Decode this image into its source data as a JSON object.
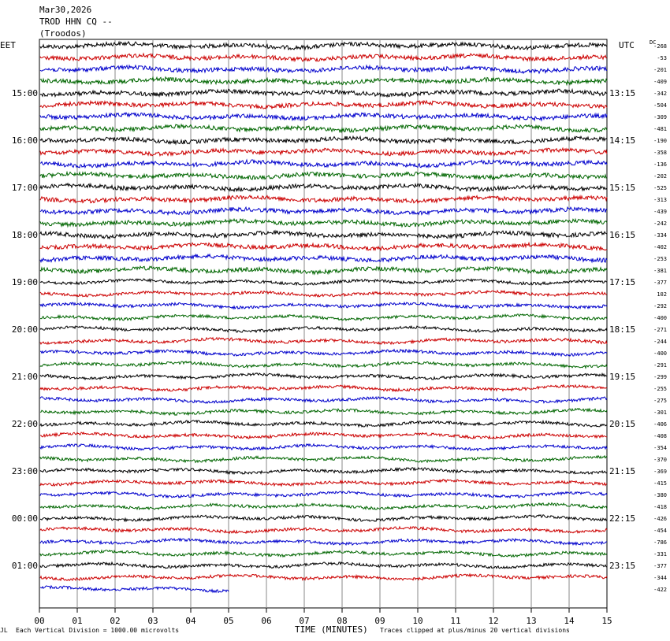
{
  "header": {
    "date": "Mar30,2026",
    "station": "TROD HHN CQ --",
    "location": "(Troodos)"
  },
  "left_tz": "EET",
  "right_tz": "UTC",
  "dc_label": "DC",
  "footer": {
    "logo": "JL",
    "scale": "Each Vertical Division = 1000.00 microvolts",
    "axis_title": "TIME (MINUTES)",
    "clip_note": "Traces clipped at plus/minus 20 vertical divisions"
  },
  "chart_data": {
    "type": "line",
    "xlabel": "TIME (MINUTES)",
    "x_ticks": [
      "00",
      "01",
      "02",
      "03",
      "04",
      "05",
      "06",
      "07",
      "08",
      "09",
      "10",
      "11",
      "12",
      "13",
      "14",
      "15"
    ],
    "xlim": [
      0,
      15
    ],
    "left_time_labels": [
      "15:00",
      "16:00",
      "17:00",
      "18:00",
      "19:00",
      "20:00",
      "21:00",
      "22:00",
      "23:00",
      "00:00",
      "01:00"
    ],
    "right_time_labels": [
      "13:15",
      "14:15",
      "15:15",
      "16:15",
      "17:15",
      "18:15",
      "19:15",
      "20:15",
      "21:15",
      "22:15",
      "23:15"
    ],
    "dc_offsets": [
      -268,
      -53,
      -201,
      -409,
      -342,
      -504,
      -309,
      -481,
      -190,
      -358,
      -136,
      -202,
      -525,
      -313,
      -439,
      -242,
      -334,
      -402,
      -253,
      -381,
      -377,
      102,
      -292,
      -400,
      -271,
      -244,
      -400,
      -291,
      -299,
      -255,
      -275,
      -301,
      -406,
      -408,
      -354,
      -370,
      -369,
      -415,
      -380,
      -418,
      -426,
      -454,
      -786,
      -331,
      -377,
      -344,
      -422
    ],
    "trace_colors": [
      "#000000",
      "#cc0000",
      "#0000cc",
      "#006600"
    ],
    "last_trace_end_minute": 5,
    "grid": "vertical"
  }
}
